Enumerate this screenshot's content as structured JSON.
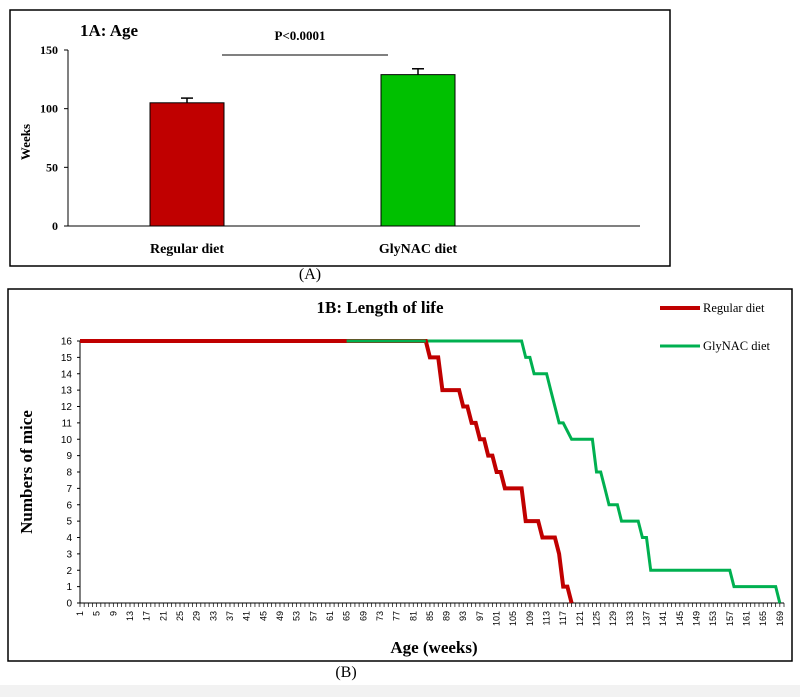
{
  "panel_a_label": "(A)",
  "panel_b_label": "(B)",
  "chart_data": [
    {
      "type": "bar",
      "title": "1A: Age",
      "ylabel": "Weeks",
      "xlabel": "",
      "categories": [
        "Regular diet",
        "GlyNAC diet"
      ],
      "values": [
        105,
        129
      ],
      "errors": [
        4,
        5
      ],
      "ylim": [
        0,
        150
      ],
      "yticks": [
        0,
        50,
        100,
        150
      ],
      "colors": [
        "#c00000",
        "#00c000"
      ],
      "annotation": "P<0.0001",
      "grid": false
    },
    {
      "type": "line",
      "title": "1B: Length of life",
      "xlabel": "Age (weeks)",
      "ylabel": "Numbers of mice",
      "xlim": [
        1,
        170
      ],
      "ylim": [
        0,
        16
      ],
      "yticks": [
        0,
        1,
        2,
        3,
        4,
        5,
        6,
        7,
        8,
        9,
        10,
        11,
        12,
        13,
        14,
        15,
        16
      ],
      "xtick_labels": [
        "1",
        "5",
        "9",
        "13",
        "17",
        "21",
        "25",
        "29",
        "33",
        "37",
        "41",
        "45",
        "49",
        "53",
        "57",
        "61",
        "65",
        "69",
        "73",
        "77",
        "81",
        "85",
        "89",
        "93",
        "97",
        "101",
        "105",
        "109",
        "113",
        "117",
        "121",
        "125",
        "129",
        "133",
        "137",
        "141",
        "145",
        "149",
        "153",
        "157",
        "161",
        "165",
        "169"
      ],
      "legend_position": "top-right",
      "grid": false,
      "series": [
        {
          "name": "Regular diet",
          "color": "#c00000",
          "points": [
            [
              1,
              16
            ],
            [
              84,
              16
            ],
            [
              85,
              15
            ],
            [
              87,
              15
            ],
            [
              88,
              13
            ],
            [
              92,
              13
            ],
            [
              93,
              12
            ],
            [
              94,
              12
            ],
            [
              95,
              11
            ],
            [
              96,
              11
            ],
            [
              97,
              10
            ],
            [
              98,
              10
            ],
            [
              99,
              9
            ],
            [
              100,
              9
            ],
            [
              101,
              8
            ],
            [
              102,
              8
            ],
            [
              103,
              7
            ],
            [
              107,
              7
            ],
            [
              108,
              5
            ],
            [
              111,
              5
            ],
            [
              112,
              4
            ],
            [
              115,
              4
            ],
            [
              116,
              3
            ],
            [
              117,
              1
            ],
            [
              118,
              1
            ],
            [
              119,
              0
            ]
          ]
        },
        {
          "name": "GlyNAC diet",
          "color": "#00b050",
          "points": [
            [
              1,
              16
            ],
            [
              107,
              16
            ],
            [
              108,
              15
            ],
            [
              109,
              15
            ],
            [
              110,
              14
            ],
            [
              113,
              14
            ],
            [
              114,
              13
            ],
            [
              115,
              12
            ],
            [
              116,
              11
            ],
            [
              117,
              11
            ],
            [
              119,
              10
            ],
            [
              124,
              10
            ],
            [
              125,
              8
            ],
            [
              126,
              8
            ],
            [
              127,
              7
            ],
            [
              128,
              6
            ],
            [
              130,
              6
            ],
            [
              131,
              5
            ],
            [
              135,
              5
            ],
            [
              136,
              4
            ],
            [
              137,
              4
            ],
            [
              138,
              2
            ],
            [
              157,
              2
            ],
            [
              158,
              1
            ],
            [
              168,
              1
            ],
            [
              169,
              0
            ]
          ]
        }
      ]
    }
  ]
}
